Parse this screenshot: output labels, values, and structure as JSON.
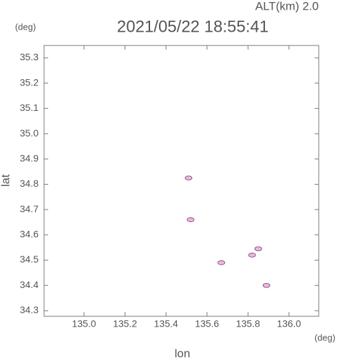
{
  "chart_data": {
    "type": "scatter",
    "title": "2021/05/22 18:55:41",
    "subtitle": "ALT(km) 2.0",
    "y_unit": "(deg)",
    "x_unit": "(deg)",
    "xlabel": "lon",
    "ylabel": "lat",
    "xlim": [
      134.805,
      136.145
    ],
    "ylim": [
      34.278,
      35.349
    ],
    "xticks": [
      {
        "value": 135,
        "label": "135.0"
      },
      135.2,
      135.4,
      135.6,
      135.8,
      {
        "value": 136,
        "label": "136.0"
      }
    ],
    "yticks": [
      34.3,
      34.4,
      34.5,
      34.6,
      34.7,
      34.8,
      34.9,
      {
        "value": 35,
        "label": "35.0"
      },
      35.1,
      35.2,
      35.3
    ],
    "series": [
      {
        "color": "#f4b8c8",
        "x": [
          135.51,
          135.52,
          135.67,
          135.82,
          135.85,
          135.89
        ],
        "values": [
          34.825,
          34.66,
          34.49,
          34.52,
          34.545,
          34.4
        ]
      }
    ]
  }
}
